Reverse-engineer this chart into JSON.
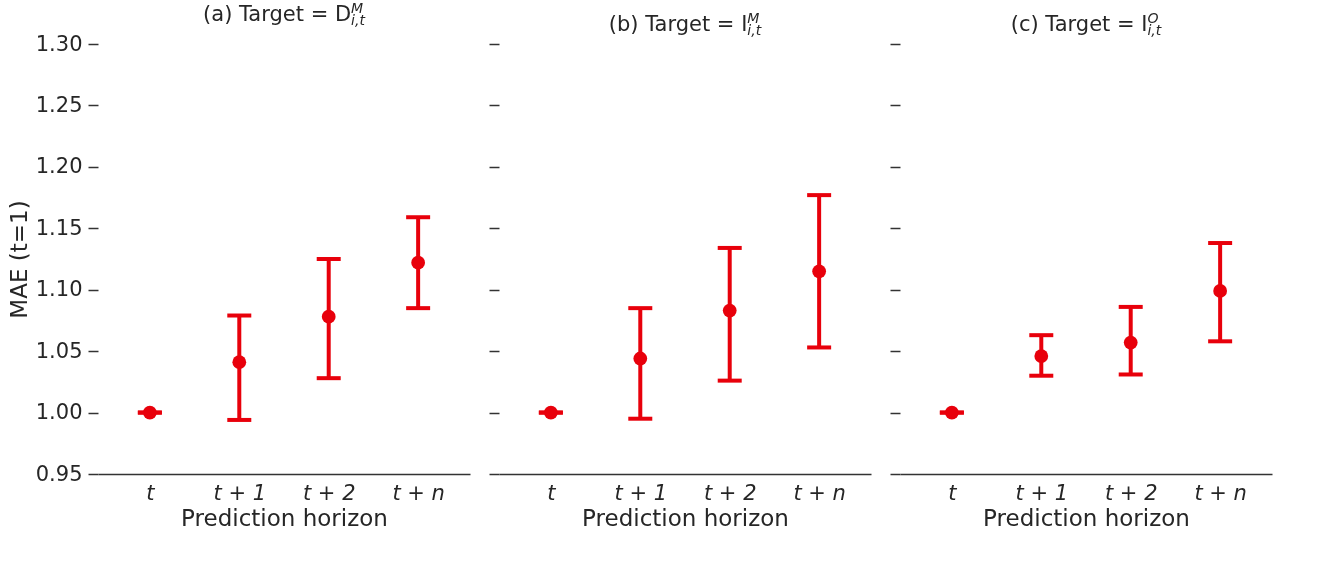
{
  "chart_data": [
    {
      "type": "scatter",
      "title": "(a) Target = D$_{i,t}$$^{M}$",
      "xlabel": "Prediction horizon",
      "ylabel": "MAE (t=1)",
      "categories": [
        "t",
        "t + 1",
        "t + 2",
        "t + n"
      ],
      "series": [
        {
          "color": "#e8000b",
          "values": [
            1.0,
            1.041,
            1.078,
            1.122
          ],
          "errors": [
            [
              1.0,
              1.0
            ],
            [
              0.994,
              1.079
            ],
            [
              1.028,
              1.125
            ],
            [
              1.085,
              1.159
            ]
          ]
        }
      ],
      "ylim": [
        0.95,
        1.3
      ],
      "yticks": [
        0.95,
        {
          "value": 1.0,
          "label": "1.00"
        },
        1.05,
        {
          "value": 1.1,
          "label": "1.10"
        },
        1.15,
        {
          "value": 1.2,
          "label": "1.20"
        },
        1.25,
        {
          "value": 1.3,
          "label": "1.30"
        }
      ],
      "marker": "circle"
    },
    {
      "type": "scatter",
      "title": "(b) Target = I$_{i,t}$$^{M}$",
      "xlabel": "Prediction horizon",
      "categories": [
        "t",
        "t + 1",
        "t + 2",
        "t + n"
      ],
      "series": [
        {
          "color": "#e8000b",
          "values": [
            1.0,
            1.044,
            1.083,
            1.115
          ],
          "errors": [
            [
              1.0,
              1.0
            ],
            [
              0.995,
              1.085
            ],
            [
              1.026,
              1.134
            ],
            [
              1.053,
              1.177
            ]
          ]
        }
      ],
      "ylim": [
        0.95,
        1.3
      ],
      "yticks": [
        0.95,
        1.0,
        1.05,
        1.1,
        1.15,
        1.2,
        1.25,
        1.3
      ],
      "tick_labels": "x",
      "marker": "circle"
    },
    {
      "type": "scatter",
      "title": "(c) Target = I$_{i,t}$$^{O}$",
      "xlabel": "Prediction horizon",
      "categories": [
        "t",
        "t + 1",
        "t + 2",
        "t + n"
      ],
      "series": [
        {
          "color": "#e8000b",
          "values": [
            1.0,
            1.046,
            1.057,
            1.099
          ],
          "errors": [
            [
              1.0,
              1.0
            ],
            [
              1.03,
              1.063
            ],
            [
              1.031,
              1.086
            ],
            [
              1.058,
              1.138
            ]
          ]
        }
      ],
      "ylim": [
        0.95,
        1.3
      ],
      "yticks": [
        0.95,
        1.0,
        1.05,
        1.1,
        1.15,
        1.2,
        1.25,
        1.3
      ],
      "tick_labels": "x",
      "marker": "circle"
    }
  ]
}
